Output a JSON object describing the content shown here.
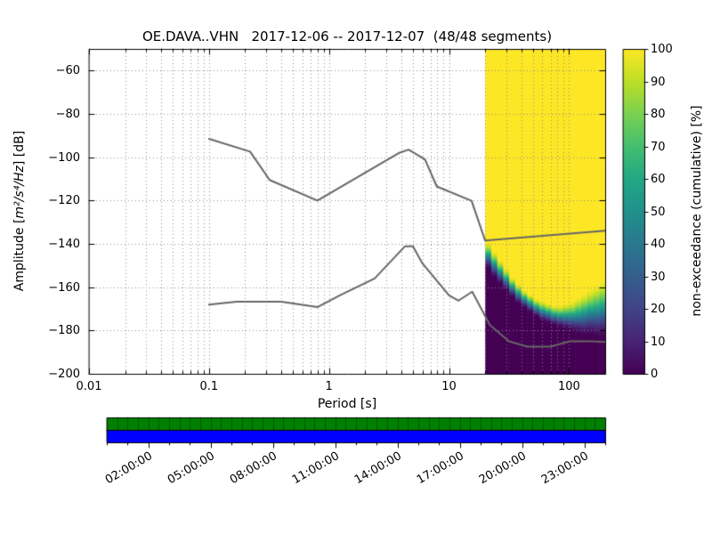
{
  "figure": {
    "background": "#ffffff"
  },
  "chart_data": {
    "type": "heatmap",
    "title": "OE.DAVA..VHN   2017-12-06 -- 2017-12-07  (48/48 segments)",
    "xlabel": "Period [s]",
    "ylabel_prefix": "Amplitude [",
    "ylabel_math": "m²/s⁴/Hz",
    "ylabel_suffix": "] [dB]",
    "x_scale": "log",
    "xlim": [
      0.01,
      200
    ],
    "ylim": [
      -200,
      -50
    ],
    "grid": "dotted, major and minor",
    "xticks": {
      "values": [
        0.01,
        0.1,
        1,
        10,
        100
      ],
      "labels": [
        "0.01",
        "0.1",
        "1",
        "10",
        "100"
      ]
    },
    "yticks": {
      "values": [
        -60,
        -80,
        -100,
        -120,
        -140,
        -160,
        -180,
        -200
      ],
      "labels": [
        "−60",
        "−80",
        "−100",
        "−120",
        "−140",
        "−160",
        "−180",
        "−200"
      ]
    },
    "colorbar": {
      "label": "non-exceedance (cumulative) [%]",
      "ticks": [
        0,
        10,
        20,
        30,
        40,
        50,
        60,
        70,
        80,
        90,
        100
      ],
      "colormap": "viridis",
      "stops": [
        [
          0,
          "#440154"
        ],
        [
          0.1,
          "#482475"
        ],
        [
          0.2,
          "#414487"
        ],
        [
          0.3,
          "#355f8d"
        ],
        [
          0.4,
          "#2a788e"
        ],
        [
          0.5,
          "#21918c"
        ],
        [
          0.6,
          "#22a884"
        ],
        [
          0.7,
          "#44bf70"
        ],
        [
          0.8,
          "#7ad151"
        ],
        [
          0.9,
          "#bddf26"
        ],
        [
          1,
          "#fde725"
        ]
      ]
    },
    "noise_models": {
      "color": "#666666",
      "nhnm": [
        [
          0.1,
          -91.5
        ],
        [
          0.22,
          -97.4
        ],
        [
          0.32,
          -110.5
        ],
        [
          0.8,
          -120.0
        ],
        [
          3.8,
          -98.1
        ],
        [
          4.6,
          -96.5
        ],
        [
          6.3,
          -101.0
        ],
        [
          7.9,
          -113.5
        ],
        [
          15.4,
          -120.1
        ],
        [
          20.0,
          -138.5
        ],
        [
          200.0,
          -133.9
        ]
      ],
      "nlnm": [
        [
          0.1,
          -168.0
        ],
        [
          0.17,
          -166.7
        ],
        [
          0.4,
          -166.7
        ],
        [
          0.8,
          -169.2
        ],
        [
          1.24,
          -163.7
        ],
        [
          2.4,
          -156.0
        ],
        [
          4.3,
          -141.1
        ],
        [
          5.0,
          -141.1
        ],
        [
          6.0,
          -149.0
        ],
        [
          10.0,
          -163.8
        ],
        [
          12.0,
          -166.2
        ],
        [
          15.6,
          -162.1
        ],
        [
          21.9,
          -177.5
        ],
        [
          31.6,
          -185.0
        ],
        [
          45.0,
          -187.5
        ],
        [
          70.0,
          -187.5
        ],
        [
          101.0,
          -185.0
        ],
        [
          154.0,
          -185.0
        ],
        [
          200.0,
          -185.3
        ]
      ]
    },
    "histogram": {
      "note": "non-exceedance percent per period column: 100% at/above db100 (yellow), 0% at/below db0 (dark purple), gradient between",
      "period_bin_edges": [
        20,
        22.44,
        25.18,
        28.25,
        31.7,
        35.57,
        39.91,
        44.77,
        50.24,
        56.37,
        63.25,
        70.96,
        79.62,
        89.34,
        100.24,
        112.47,
        126.19,
        141.59,
        158.87,
        178.25,
        200
      ],
      "columns": [
        {
          "db100": -139,
          "db0": -152
        },
        {
          "db100": -143,
          "db0": -156
        },
        {
          "db100": -147,
          "db0": -159
        },
        {
          "db100": -151,
          "db0": -162
        },
        {
          "db100": -155,
          "db0": -165
        },
        {
          "db100": -158,
          "db0": -168
        },
        {
          "db100": -161,
          "db0": -170
        },
        {
          "db100": -163,
          "db0": -172
        },
        {
          "db100": -165,
          "db0": -174
        },
        {
          "db100": -166,
          "db0": -176
        },
        {
          "db100": -167,
          "db0": -177
        },
        {
          "db100": -168,
          "db0": -178
        },
        {
          "db100": -168,
          "db0": -179
        },
        {
          "db100": -167,
          "db0": -180
        },
        {
          "db100": -166,
          "db0": -181
        },
        {
          "db100": -164,
          "db0": -182
        },
        {
          "db100": -162,
          "db0": -183
        },
        {
          "db100": -160,
          "db0": -183
        },
        {
          "db100": -158,
          "db0": -184
        },
        {
          "db100": -156,
          "db0": -184
        }
      ]
    },
    "timeline": {
      "tick_labels": [
        "02:00:00",
        "05:00:00",
        "08:00:00",
        "11:00:00",
        "14:00:00",
        "17:00:00",
        "20:00:00",
        "23:00:00"
      ],
      "tick_hours": [
        2,
        5,
        8,
        11,
        14,
        17,
        20,
        23
      ],
      "span_hours": 24,
      "segments_total": 48,
      "segments_used": 48,
      "coverage_color": "#008000",
      "extent_color": "#0000ff"
    }
  }
}
